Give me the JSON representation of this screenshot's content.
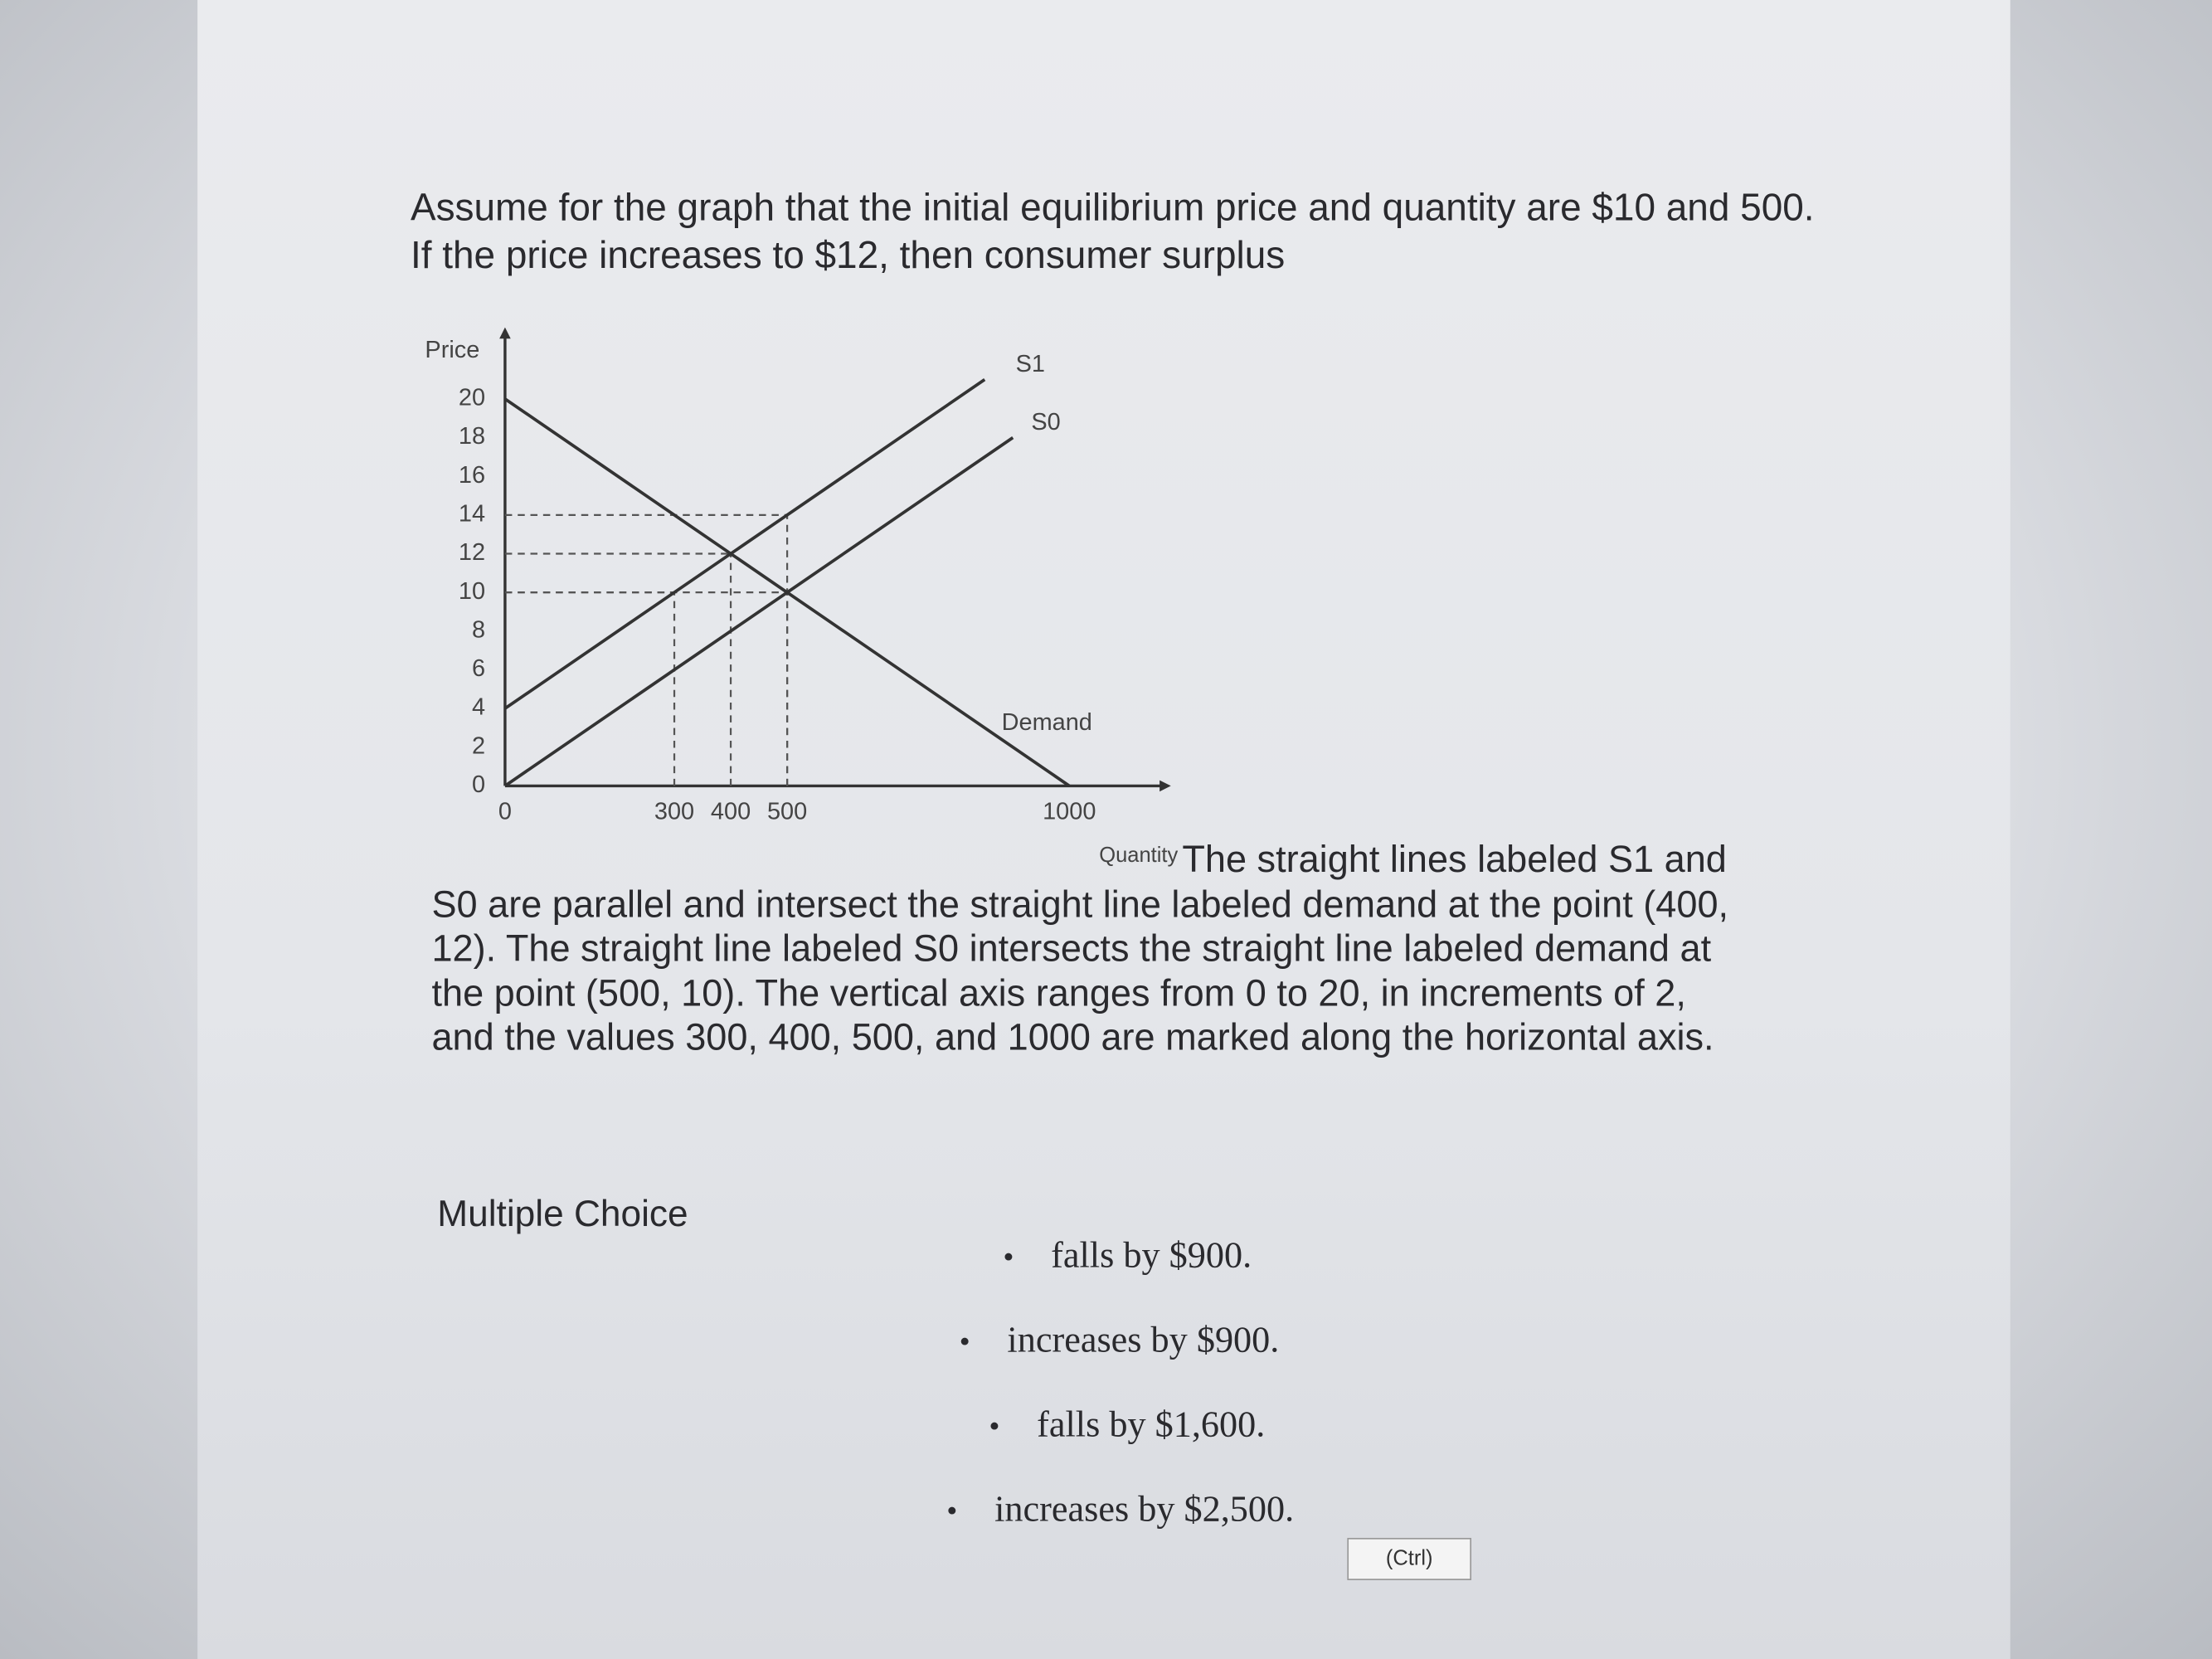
{
  "question": "Assume for the graph that the initial equilibrium price and quantity are $10 and 500. If the price increases to $12, then consumer surplus",
  "chart_data": {
    "type": "line",
    "y_label": "Price",
    "x_label": "Quantity",
    "xlim": [
      0,
      1180
    ],
    "ylim": [
      0,
      23.7
    ],
    "xticks": [
      0,
      300,
      400,
      500,
      1000
    ],
    "yticks": [
      0,
      2,
      4,
      6,
      8,
      10,
      12,
      14,
      16,
      18,
      20
    ],
    "grid": false,
    "series": [
      {
        "name": "S1",
        "color": "#333333",
        "x": [
          0,
          400,
          850
        ],
        "values": [
          4,
          12,
          21
        ]
      },
      {
        "name": "S0",
        "color": "#333333",
        "x": [
          0,
          500,
          900
        ],
        "values": [
          0,
          10,
          18
        ]
      },
      {
        "name": "Demand",
        "color": "#333333",
        "x": [
          0,
          400,
          500,
          1000
        ],
        "values": [
          20,
          12,
          10,
          0
        ]
      }
    ],
    "guides": [
      {
        "x": 500,
        "y": 14
      },
      {
        "x": 400,
        "y": 12
      },
      {
        "x": 500,
        "y": 10
      },
      {
        "x": 300,
        "y": 10
      }
    ]
  },
  "description": "The straight lines labeled S1 and S0 are parallel and intersect the straight line labeled demand at the point (400, 12). The straight line labeled S0 intersects the straight line labeled demand at the point (500, 10). The vertical axis ranges from 0 to 20, in increments of 2, and the values 300, 400, 500, and 1000 are marked along the horizontal axis.",
  "multiple_choice_label": "Multiple Choice",
  "options": [
    "falls by $900.",
    "increases by $900.",
    "falls by $1,600.",
    "increases by $2,500."
  ],
  "paste_button": "(Ctrl)"
}
